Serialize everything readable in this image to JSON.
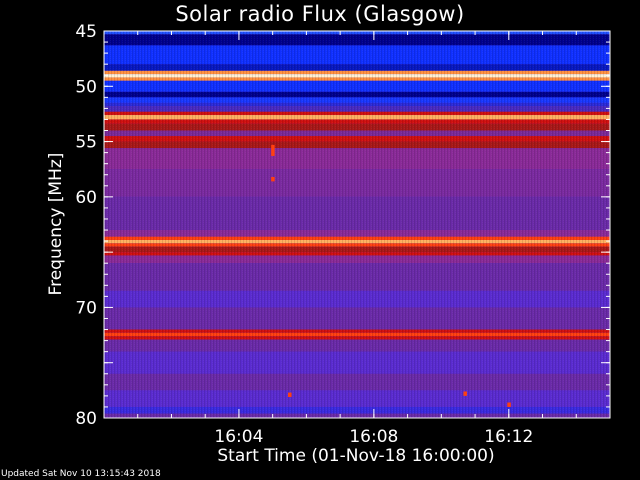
{
  "chart_data": {
    "type": "heatmap",
    "title": "Solar radio Flux (Glasgow)",
    "xlabel": "Start Time (01-Nov-18 16:00:00)",
    "ylabel": "Frequency [MHz]",
    "x_unit": "minutes after 16:00",
    "xlim": [
      0,
      15
    ],
    "ylim": [
      45,
      80
    ],
    "x_ticks": [
      {
        "value": 4,
        "label": "16:04"
      },
      {
        "value": 8,
        "label": "16:08"
      },
      {
        "value": 12,
        "label": "16:12"
      }
    ],
    "y_ticks": [
      {
        "value": 45,
        "label": "45"
      },
      {
        "value": 50,
        "label": "50"
      },
      {
        "value": 55,
        "label": "55"
      },
      {
        "value": 60,
        "label": "60"
      },
      {
        "value": 65,
        "label": ""
      },
      {
        "value": 70,
        "label": "70"
      },
      {
        "value": 75,
        "label": ""
      },
      {
        "value": 80,
        "label": "80"
      }
    ],
    "colormap": [
      "#00008c",
      "#1030ff",
      "#5a2bd0",
      "#6a2aa8",
      "#8a2a98",
      "#a81818",
      "#d01010",
      "#ff4010",
      "#ffb060",
      "#fff0d0"
    ],
    "bands": [
      {
        "from": 45.0,
        "to": 45.3,
        "color": "#2050ff"
      },
      {
        "from": 45.3,
        "to": 46.3,
        "color": "#00008c"
      },
      {
        "from": 46.3,
        "to": 48.0,
        "color": "#1030ff"
      },
      {
        "from": 48.0,
        "to": 48.6,
        "color": "#0818c0"
      },
      {
        "from": 48.6,
        "to": 48.9,
        "color": "#ff9040"
      },
      {
        "from": 48.9,
        "to": 49.2,
        "color": "#fff0d0"
      },
      {
        "from": 49.2,
        "to": 49.5,
        "color": "#ff9040"
      },
      {
        "from": 49.5,
        "to": 50.5,
        "color": "#1030ff"
      },
      {
        "from": 50.5,
        "to": 51.0,
        "color": "#00008c"
      },
      {
        "from": 51.0,
        "to": 51.5,
        "color": "#1838ff"
      },
      {
        "from": 51.5,
        "to": 51.8,
        "color": "#2a2ad8"
      },
      {
        "from": 51.8,
        "to": 52.3,
        "color": "#4a2ac0"
      },
      {
        "from": 52.3,
        "to": 52.6,
        "color": "#d01010"
      },
      {
        "from": 52.6,
        "to": 53.0,
        "color": "#ffb060"
      },
      {
        "from": 53.0,
        "to": 53.4,
        "color": "#d01010"
      },
      {
        "from": 53.4,
        "to": 54.0,
        "color": "#a81818"
      },
      {
        "from": 54.0,
        "to": 54.5,
        "color": "#7a2a98"
      },
      {
        "from": 54.5,
        "to": 55.0,
        "color": "#d01010"
      },
      {
        "from": 55.0,
        "to": 55.6,
        "color": "#a81818"
      },
      {
        "from": 55.6,
        "to": 57.5,
        "color": "#8a2a98"
      },
      {
        "from": 57.5,
        "to": 60.0,
        "color": "#7a2aa0"
      },
      {
        "from": 60.0,
        "to": 63.0,
        "color": "#6a2aa8"
      },
      {
        "from": 63.0,
        "to": 63.6,
        "color": "#8a2a98"
      },
      {
        "from": 63.6,
        "to": 63.9,
        "color": "#ff4010"
      },
      {
        "from": 63.9,
        "to": 64.2,
        "color": "#ffb060"
      },
      {
        "from": 64.2,
        "to": 64.5,
        "color": "#ff4010"
      },
      {
        "from": 64.5,
        "to": 65.0,
        "color": "#a81818"
      },
      {
        "from": 65.0,
        "to": 65.3,
        "color": "#d01010"
      },
      {
        "from": 65.3,
        "to": 66.0,
        "color": "#8a2a98"
      },
      {
        "from": 66.0,
        "to": 68.5,
        "color": "#6a2aa8"
      },
      {
        "from": 68.5,
        "to": 70.0,
        "color": "#5a2bd0"
      },
      {
        "from": 70.0,
        "to": 72.0,
        "color": "#6a2aa8"
      },
      {
        "from": 72.0,
        "to": 72.3,
        "color": "#d01010"
      },
      {
        "from": 72.3,
        "to": 72.6,
        "color": "#ff4010"
      },
      {
        "from": 72.6,
        "to": 72.9,
        "color": "#d01010"
      },
      {
        "from": 72.9,
        "to": 74.0,
        "color": "#6a2aa8"
      },
      {
        "from": 74.0,
        "to": 76.0,
        "color": "#5a2bd0"
      },
      {
        "from": 76.0,
        "to": 77.5,
        "color": "#6a2aa8"
      },
      {
        "from": 77.5,
        "to": 79.0,
        "color": "#5a2bd0"
      },
      {
        "from": 79.0,
        "to": 79.6,
        "color": "#3a2ae0"
      },
      {
        "from": 79.6,
        "to": 80.0,
        "color": "#6a2aa8"
      }
    ],
    "bursts": [
      {
        "x": 5.0,
        "y_from": 55.3,
        "y_to": 56.3,
        "color": "#ff4010"
      },
      {
        "x": 5.0,
        "y_from": 58.2,
        "y_to": 58.6,
        "color": "#ff4010"
      },
      {
        "x": 5.5,
        "y_from": 77.7,
        "y_to": 78.1,
        "color": "#ff4010"
      },
      {
        "x": 10.7,
        "y_from": 77.6,
        "y_to": 78.0,
        "color": "#ff4010"
      },
      {
        "x": 12.0,
        "y_from": 78.6,
        "y_to": 79.0,
        "color": "#ff4010"
      }
    ],
    "grid": false,
    "legend": "none"
  },
  "footer": "Updated Sat Nov 10 13:15:43 2018"
}
